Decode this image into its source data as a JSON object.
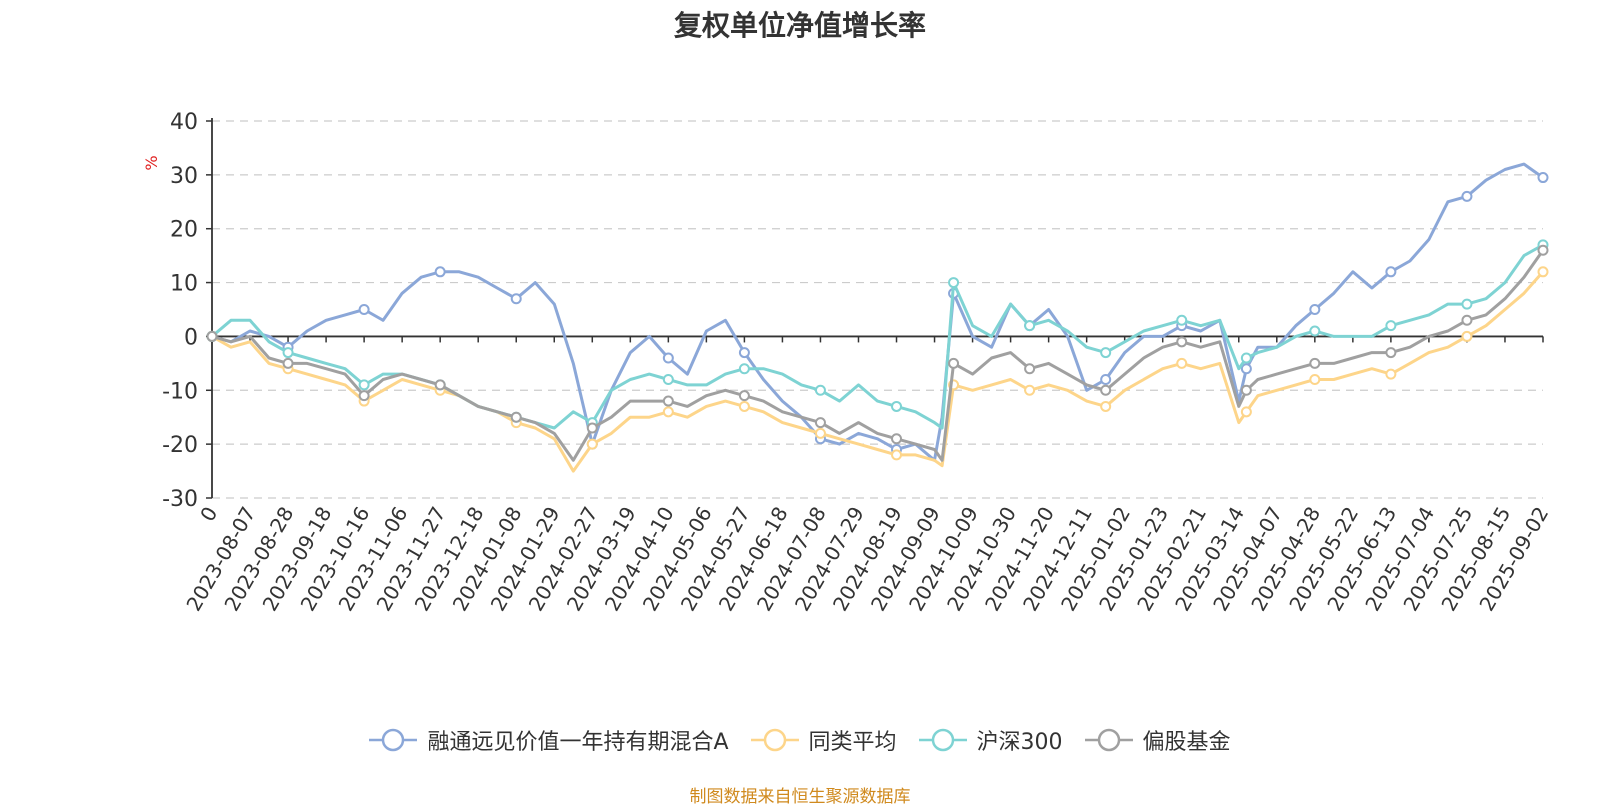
{
  "chart_data": {
    "type": "line",
    "title": "复权单位净值增长率",
    "ylabel": "%",
    "ylim": [
      -30,
      40
    ],
    "yticks": [
      -30,
      -20,
      -10,
      0,
      10,
      20,
      30,
      40
    ],
    "grid": true,
    "legend_position": "bottom-center",
    "x_start_label": "0",
    "x_tick_labels": [
      "2023-08-07",
      "2023-08-28",
      "2023-09-18",
      "2023-10-16",
      "2023-11-06",
      "2023-11-27",
      "2023-12-18",
      "2024-01-08",
      "2024-01-29",
      "2024-02-27",
      "2024-03-19",
      "2024-04-10",
      "2024-05-06",
      "2024-05-27",
      "2024-06-18",
      "2024-07-08",
      "2024-07-29",
      "2024-08-19",
      "2024-09-09",
      "2024-10-09",
      "2024-10-30",
      "2024-11-20",
      "2024-12-11",
      "2025-01-02",
      "2025-01-23",
      "2025-02-21",
      "2025-03-14",
      "2025-04-07",
      "2025-04-28",
      "2025-05-22",
      "2025-06-13",
      "2025-07-04",
      "2025-07-25",
      "2025-08-15",
      "2025-09-02"
    ],
    "x_min": 0,
    "x_max": 35,
    "series": [
      {
        "name": "融通远见价值一年持有期混合A",
        "color": "#8ba7d8",
        "x": [
          0,
          0.5,
          1,
          1.5,
          2,
          2.5,
          3,
          3.5,
          4,
          4.5,
          5,
          5.5,
          6,
          6.5,
          7,
          7.5,
          8,
          8.5,
          9,
          9.5,
          10,
          10.5,
          11,
          11.5,
          12,
          12.5,
          13,
          13.5,
          14,
          14.5,
          15,
          15.5,
          16,
          16.5,
          17,
          17.5,
          18,
          18.5,
          19,
          19.2,
          19.5,
          20,
          20.5,
          21,
          21.5,
          22,
          22.5,
          23,
          23.5,
          24,
          24.5,
          25,
          25.5,
          26,
          26.5,
          27,
          27.2,
          27.5,
          28,
          28.5,
          29,
          29.5,
          30,
          30.5,
          31,
          31.5,
          32,
          32.5,
          33,
          33.5,
          34,
          34.5,
          35
        ],
        "y": [
          0,
          -1,
          1,
          0,
          -2,
          1,
          3,
          4,
          5,
          3,
          8,
          11,
          12,
          12,
          11,
          9,
          7,
          10,
          6,
          -5,
          -20,
          -10,
          -3,
          0,
          -4,
          -7,
          1,
          3,
          -3,
          -8,
          -12,
          -15,
          -19,
          -20,
          -18,
          -19,
          -21,
          -20,
          -23,
          -15,
          8,
          0,
          -2,
          6,
          2,
          5,
          0,
          -10,
          -8,
          -3,
          0,
          0,
          2,
          1,
          3,
          -12,
          -6,
          -2,
          -2,
          2,
          5,
          8,
          12,
          9,
          12,
          14,
          18,
          25,
          26,
          29,
          31,
          32,
          29.5
        ]
      },
      {
        "name": "同类平均",
        "color": "#fdd58a",
        "x": [
          0,
          0.5,
          1,
          1.5,
          2,
          2.5,
          3,
          3.5,
          4,
          4.5,
          5,
          5.5,
          6,
          6.5,
          7,
          7.5,
          8,
          8.5,
          9,
          9.5,
          10,
          10.5,
          11,
          11.5,
          12,
          12.5,
          13,
          13.5,
          14,
          14.5,
          15,
          15.5,
          16,
          16.5,
          17,
          17.5,
          18,
          18.5,
          19,
          19.2,
          19.5,
          20,
          20.5,
          21,
          21.5,
          22,
          22.5,
          23,
          23.5,
          24,
          24.5,
          25,
          25.5,
          26,
          26.5,
          27,
          27.2,
          27.5,
          28,
          28.5,
          29,
          29.5,
          30,
          30.5,
          31,
          31.5,
          32,
          32.5,
          33,
          33.5,
          34,
          34.5,
          35
        ],
        "y": [
          0,
          -2,
          -1,
          -5,
          -6,
          -7,
          -8,
          -9,
          -12,
          -10,
          -8,
          -9,
          -10,
          -11,
          -13,
          -14,
          -16,
          -17,
          -19,
          -25,
          -20,
          -18,
          -15,
          -15,
          -14,
          -15,
          -13,
          -12,
          -13,
          -14,
          -16,
          -17,
          -18,
          -19,
          -20,
          -21,
          -22,
          -22,
          -23,
          -24,
          -9,
          -10,
          -9,
          -8,
          -10,
          -9,
          -10,
          -12,
          -13,
          -10,
          -8,
          -6,
          -5,
          -6,
          -5,
          -16,
          -14,
          -11,
          -10,
          -9,
          -8,
          -8,
          -7,
          -6,
          -7,
          -5,
          -3,
          -2,
          0,
          2,
          5,
          8,
          12
        ]
      },
      {
        "name": "沪深300",
        "color": "#7ed3d3",
        "x": [
          0,
          0.5,
          1,
          1.5,
          2,
          2.5,
          3,
          3.5,
          4,
          4.5,
          5,
          5.5,
          6,
          6.5,
          7,
          7.5,
          8,
          8.5,
          9,
          9.5,
          10,
          10.5,
          11,
          11.5,
          12,
          12.5,
          13,
          13.5,
          14,
          14.5,
          15,
          15.5,
          16,
          16.5,
          17,
          17.5,
          18,
          18.5,
          19,
          19.2,
          19.5,
          20,
          20.5,
          21,
          21.5,
          22,
          22.5,
          23,
          23.5,
          24,
          24.5,
          25,
          25.5,
          26,
          26.5,
          27,
          27.2,
          27.5,
          28,
          28.5,
          29,
          29.5,
          30,
          30.5,
          31,
          31.5,
          32,
          32.5,
          33,
          33.5,
          34,
          34.5,
          35
        ],
        "y": [
          0,
          3,
          3,
          -1,
          -3,
          -4,
          -5,
          -6,
          -9,
          -7,
          -7,
          -8,
          -9,
          -11,
          -13,
          -14,
          -15,
          -16,
          -17,
          -14,
          -16,
          -10,
          -8,
          -7,
          -8,
          -9,
          -9,
          -7,
          -6,
          -6,
          -7,
          -9,
          -10,
          -12,
          -9,
          -12,
          -13,
          -14,
          -16,
          -17,
          10,
          2,
          0,
          6,
          2,
          3,
          1,
          -2,
          -3,
          -1,
          1,
          2,
          3,
          2,
          3,
          -6,
          -4,
          -3,
          -2,
          0,
          1,
          0,
          0,
          0,
          2,
          3,
          4,
          6,
          6,
          7,
          10,
          15,
          17
        ]
      },
      {
        "name": "偏股基金",
        "color": "#a0a0a0",
        "x": [
          0,
          0.5,
          1,
          1.5,
          2,
          2.5,
          3,
          3.5,
          4,
          4.5,
          5,
          5.5,
          6,
          6.5,
          7,
          7.5,
          8,
          8.5,
          9,
          9.5,
          10,
          10.5,
          11,
          11.5,
          12,
          12.5,
          13,
          13.5,
          14,
          14.5,
          15,
          15.5,
          16,
          16.5,
          17,
          17.5,
          18,
          18.5,
          19,
          19.2,
          19.5,
          20,
          20.5,
          21,
          21.5,
          22,
          22.5,
          23,
          23.5,
          24,
          24.5,
          25,
          25.5,
          26,
          26.5,
          27,
          27.2,
          27.5,
          28,
          28.5,
          29,
          29.5,
          30,
          30.5,
          31,
          31.5,
          32,
          32.5,
          33,
          33.5,
          34,
          34.5,
          35
        ],
        "y": [
          0,
          -1,
          0,
          -4,
          -5,
          -5,
          -6,
          -7,
          -11,
          -8,
          -7,
          -8,
          -9,
          -11,
          -13,
          -14,
          -15,
          -16,
          -18,
          -23,
          -17,
          -15,
          -12,
          -12,
          -12,
          -13,
          -11,
          -10,
          -11,
          -12,
          -14,
          -15,
          -16,
          -18,
          -16,
          -18,
          -19,
          -20,
          -21,
          -23,
          -5,
          -7,
          -4,
          -3,
          -6,
          -5,
          -7,
          -9,
          -10,
          -7,
          -4,
          -2,
          -1,
          -2,
          -1,
          -13,
          -10,
          -8,
          -7,
          -6,
          -5,
          -5,
          -4,
          -3,
          -3,
          -2,
          0,
          1,
          3,
          4,
          7,
          11,
          16
        ]
      }
    ]
  },
  "source_text": "制图数据来自恒生聚源数据库"
}
